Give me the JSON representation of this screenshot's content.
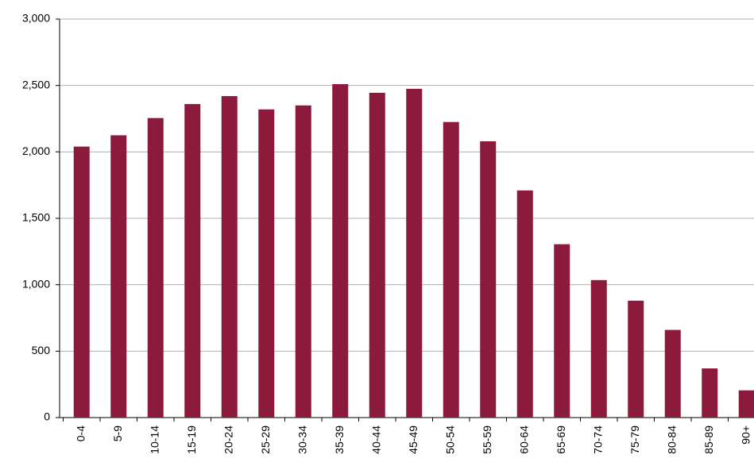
{
  "chart_data": {
    "type": "bar",
    "categories": [
      "0-4",
      "5-9",
      "10-14",
      "15-19",
      "20-24",
      "25-29",
      "30-34",
      "35-39",
      "40-44",
      "45-49",
      "50-54",
      "55-59",
      "60-64",
      "65-69",
      "70-74",
      "75-79",
      "80-84",
      "85-89",
      "90+"
    ],
    "values": [
      2040,
      2125,
      2255,
      2360,
      2420,
      2320,
      2350,
      2510,
      2445,
      2475,
      2225,
      2080,
      1710,
      1305,
      1035,
      880,
      660,
      370,
      205
    ],
    "color": "#8b1a3c",
    "ylim": [
      0,
      3000
    ],
    "yticks": [
      0,
      {
        "value": 500,
        "label": "500"
      },
      {
        "value": 1000,
        "label": "1,000"
      },
      {
        "value": 1500,
        "label": "1,500"
      },
      {
        "value": 2000,
        "label": "2,000"
      },
      {
        "value": 2500,
        "label": "2,500"
      },
      {
        "value": 3000,
        "label": "3,000"
      }
    ],
    "grid": true
  }
}
